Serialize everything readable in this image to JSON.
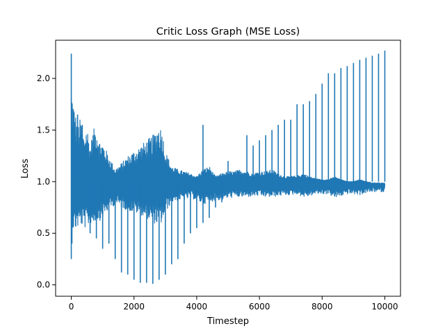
{
  "chart_data": {
    "type": "line",
    "title": "Critic Loss Graph (MSE Loss)",
    "xlabel": "Timestep",
    "ylabel": "Loss",
    "xlim": [
      -500,
      10500
    ],
    "ylim": [
      -0.11,
      2.37
    ],
    "xticks": [
      0,
      2000,
      4000,
      6000,
      8000,
      10000
    ],
    "xtick_labels": [
      "0",
      "2000",
      "4000",
      "6000",
      "8000",
      "10000"
    ],
    "yticks": [
      0.0,
      0.5,
      1.0,
      1.5,
      2.0
    ],
    "ytick_labels": [
      "0.0",
      "0.5",
      "1.0",
      "1.5",
      "2.0"
    ],
    "grid": false,
    "legend": "none",
    "series_color": "#1f77b4",
    "envelope": {
      "x": [
        0,
        100,
        200,
        300,
        400,
        500,
        600,
        700,
        800,
        900,
        1000,
        1200,
        1400,
        1600,
        1800,
        2000,
        2200,
        2400,
        2600,
        2800,
        2900,
        3000,
        3200,
        3400,
        3600,
        3800,
        4000,
        4200,
        4400,
        4600,
        4800,
        5000,
        5200,
        5400,
        5600,
        5800,
        6000,
        6200,
        6400,
        6600,
        6800,
        7000,
        7200,
        7400,
        7600,
        7800,
        8000,
        8200,
        8400,
        8600,
        8800,
        9000,
        9200,
        9400,
        9600,
        9800,
        10000
      ],
      "upper": [
        1.95,
        1.72,
        1.55,
        1.62,
        1.45,
        1.55,
        1.35,
        1.5,
        1.55,
        1.4,
        1.38,
        1.25,
        1.12,
        1.18,
        1.25,
        1.3,
        1.35,
        1.4,
        1.45,
        1.56,
        1.5,
        1.3,
        1.15,
        1.12,
        1.1,
        1.08,
        1.05,
        1.12,
        1.15,
        1.05,
        1.08,
        1.1,
        1.1,
        1.12,
        1.1,
        1.08,
        1.1,
        1.1,
        1.12,
        1.08,
        1.05,
        1.05,
        1.06,
        1.08,
        1.05,
        1.03,
        1.02,
        1.02,
        1.05,
        1.02,
        1.0,
        1.0,
        1.02,
        1.0,
        0.98,
        0.98,
        0.98
      ],
      "lower": [
        0.55,
        0.52,
        0.55,
        0.58,
        0.55,
        0.55,
        0.6,
        0.58,
        0.62,
        0.62,
        0.65,
        0.72,
        0.78,
        0.75,
        0.72,
        0.7,
        0.68,
        0.65,
        0.6,
        0.58,
        0.6,
        0.7,
        0.8,
        0.82,
        0.82,
        0.84,
        0.82,
        0.78,
        0.8,
        0.82,
        0.82,
        0.84,
        0.85,
        0.85,
        0.85,
        0.86,
        0.86,
        0.85,
        0.85,
        0.86,
        0.87,
        0.87,
        0.88,
        0.85,
        0.86,
        0.88,
        0.88,
        0.88,
        0.84,
        0.86,
        0.88,
        0.88,
        0.87,
        0.89,
        0.9,
        0.9,
        0.9
      ]
    },
    "spikes": [
      {
        "x": 0,
        "y": 2.24
      },
      {
        "x": 0,
        "y": 0.25
      },
      {
        "x": 20,
        "y": 0.4
      },
      {
        "x": 200,
        "y": 1.65
      },
      {
        "x": 350,
        "y": 1.55
      },
      {
        "x": 600,
        "y": 0.5
      },
      {
        "x": 800,
        "y": 0.45
      },
      {
        "x": 1000,
        "y": 0.35
      },
      {
        "x": 1200,
        "y": 0.4
      },
      {
        "x": 1400,
        "y": 0.25
      },
      {
        "x": 1600,
        "y": 0.12
      },
      {
        "x": 1800,
        "y": 0.1
      },
      {
        "x": 2000,
        "y": 0.05
      },
      {
        "x": 2200,
        "y": 0.02
      },
      {
        "x": 2400,
        "y": 0.02
      },
      {
        "x": 2600,
        "y": 0.01
      },
      {
        "x": 2800,
        "y": 0.05
      },
      {
        "x": 3000,
        "y": 0.1
      },
      {
        "x": 3200,
        "y": 0.2
      },
      {
        "x": 3400,
        "y": 0.25
      },
      {
        "x": 3600,
        "y": 0.4
      },
      {
        "x": 3800,
        "y": 0.5
      },
      {
        "x": 4000,
        "y": 0.55
      },
      {
        "x": 4200,
        "y": 0.6
      },
      {
        "x": 4200,
        "y": 1.55
      },
      {
        "x": 4400,
        "y": 0.65
      },
      {
        "x": 4600,
        "y": 0.75
      },
      {
        "x": 4800,
        "y": 0.8
      },
      {
        "x": 5000,
        "y": 1.2
      },
      {
        "x": 5200,
        "y": 0.95
      },
      {
        "x": 5400,
        "y": 1.05
      },
      {
        "x": 5600,
        "y": 1.45
      },
      {
        "x": 5800,
        "y": 1.35
      },
      {
        "x": 6000,
        "y": 1.4
      },
      {
        "x": 6200,
        "y": 1.45
      },
      {
        "x": 6400,
        "y": 1.5
      },
      {
        "x": 6600,
        "y": 1.55
      },
      {
        "x": 6800,
        "y": 1.6
      },
      {
        "x": 7000,
        "y": 1.6
      },
      {
        "x": 7200,
        "y": 1.75
      },
      {
        "x": 7400,
        "y": 1.75
      },
      {
        "x": 7600,
        "y": 1.78
      },
      {
        "x": 7800,
        "y": 1.85
      },
      {
        "x": 8000,
        "y": 1.95
      },
      {
        "x": 8200,
        "y": 2.05
      },
      {
        "x": 8400,
        "y": 2.05
      },
      {
        "x": 8600,
        "y": 2.1
      },
      {
        "x": 8800,
        "y": 2.12
      },
      {
        "x": 9000,
        "y": 2.15
      },
      {
        "x": 9200,
        "y": 2.18
      },
      {
        "x": 9400,
        "y": 2.2
      },
      {
        "x": 9600,
        "y": 2.22
      },
      {
        "x": 9800,
        "y": 2.24
      },
      {
        "x": 10000,
        "y": 2.27
      }
    ]
  }
}
